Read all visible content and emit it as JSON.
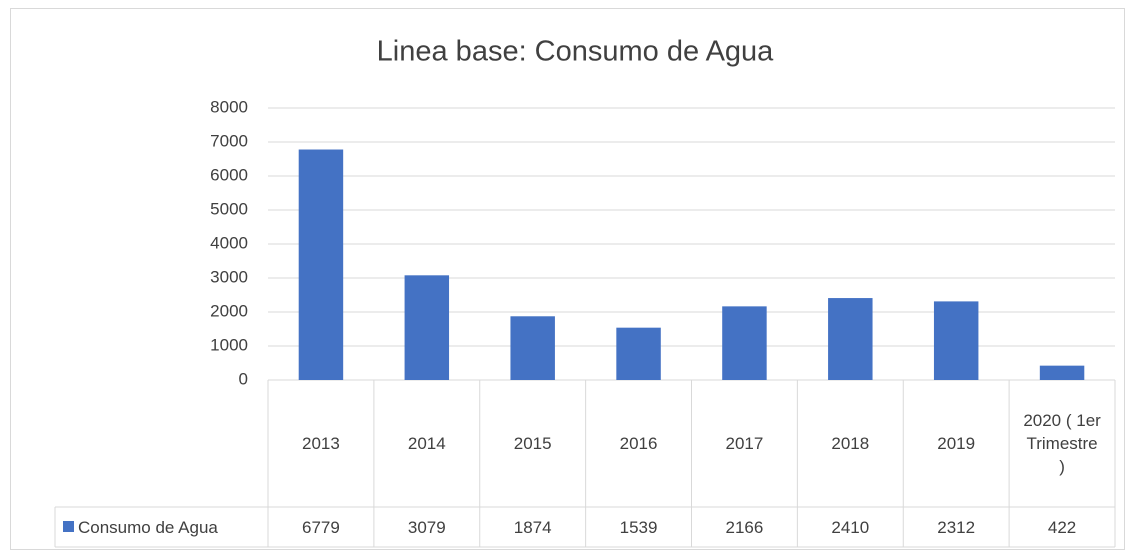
{
  "chart_data": {
    "type": "bar",
    "title": "Linea base: Consumo de Agua",
    "categories": [
      "2013",
      "2014",
      "2015",
      "2016",
      "2017",
      "2018",
      "2019",
      "2020 ( 1er Trimestre )"
    ],
    "series": [
      {
        "name": "Consumo de Agua",
        "color": "#4472c4",
        "values": [
          6779,
          3079,
          1874,
          1539,
          2166,
          2410,
          2312,
          422
        ]
      }
    ],
    "ylim": [
      0,
      8000
    ],
    "yticks": [
      0,
      1000,
      2000,
      3000,
      4000,
      5000,
      6000,
      7000,
      8000
    ],
    "grid": true,
    "data_table": true
  }
}
